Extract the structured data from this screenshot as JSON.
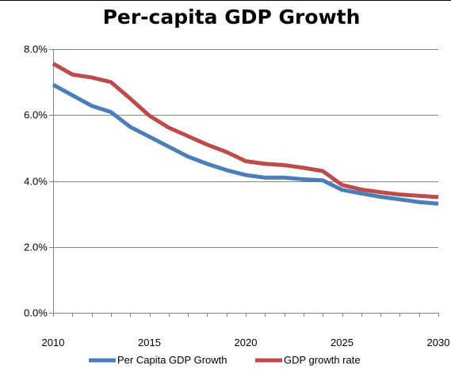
{
  "chart_data": {
    "type": "line",
    "title": "Per-capita GDP Growth",
    "xlabel": "",
    "ylabel": "",
    "xlim": [
      2010,
      2030
    ],
    "ylim": [
      0,
      0.08
    ],
    "x_ticks": [
      2010,
      2015,
      2020,
      2025,
      2030
    ],
    "x_tick_labels": [
      "2010",
      "2015",
      "2020",
      "2025",
      "2030"
    ],
    "y_ticks": [
      0,
      0.02,
      0.04,
      0.06,
      0.08
    ],
    "y_tick_labels": [
      "0.0%",
      "2.0%",
      "4.0%",
      "6.0%",
      "8.0%"
    ],
    "grid": "horizontal",
    "legend_position": "bottom",
    "x": [
      2010,
      2011,
      2012,
      2013,
      2014,
      2015,
      2016,
      2017,
      2018,
      2019,
      2020,
      2021,
      2022,
      2023,
      2024,
      2025,
      2026,
      2027,
      2028,
      2029,
      2030
    ],
    "series": [
      {
        "name": "Per Capita GDP Growth",
        "color": "#4a7ebb",
        "values": [
          0.0692,
          0.066,
          0.0628,
          0.0609,
          0.0564,
          0.0534,
          0.0504,
          0.0474,
          0.0452,
          0.0433,
          0.0418,
          0.041,
          0.041,
          0.0405,
          0.0402,
          0.0373,
          0.0362,
          0.0352,
          0.0344,
          0.0336,
          0.0331
        ]
      },
      {
        "name": "GDP growth rate",
        "color": "#be4b48",
        "values": [
          0.0756,
          0.0723,
          0.0714,
          0.07,
          0.065,
          0.0598,
          0.0562,
          0.0536,
          0.051,
          0.0488,
          0.046,
          0.0452,
          0.0448,
          0.044,
          0.043,
          0.0388,
          0.0374,
          0.0366,
          0.0359,
          0.0355,
          0.0351
        ]
      }
    ]
  }
}
